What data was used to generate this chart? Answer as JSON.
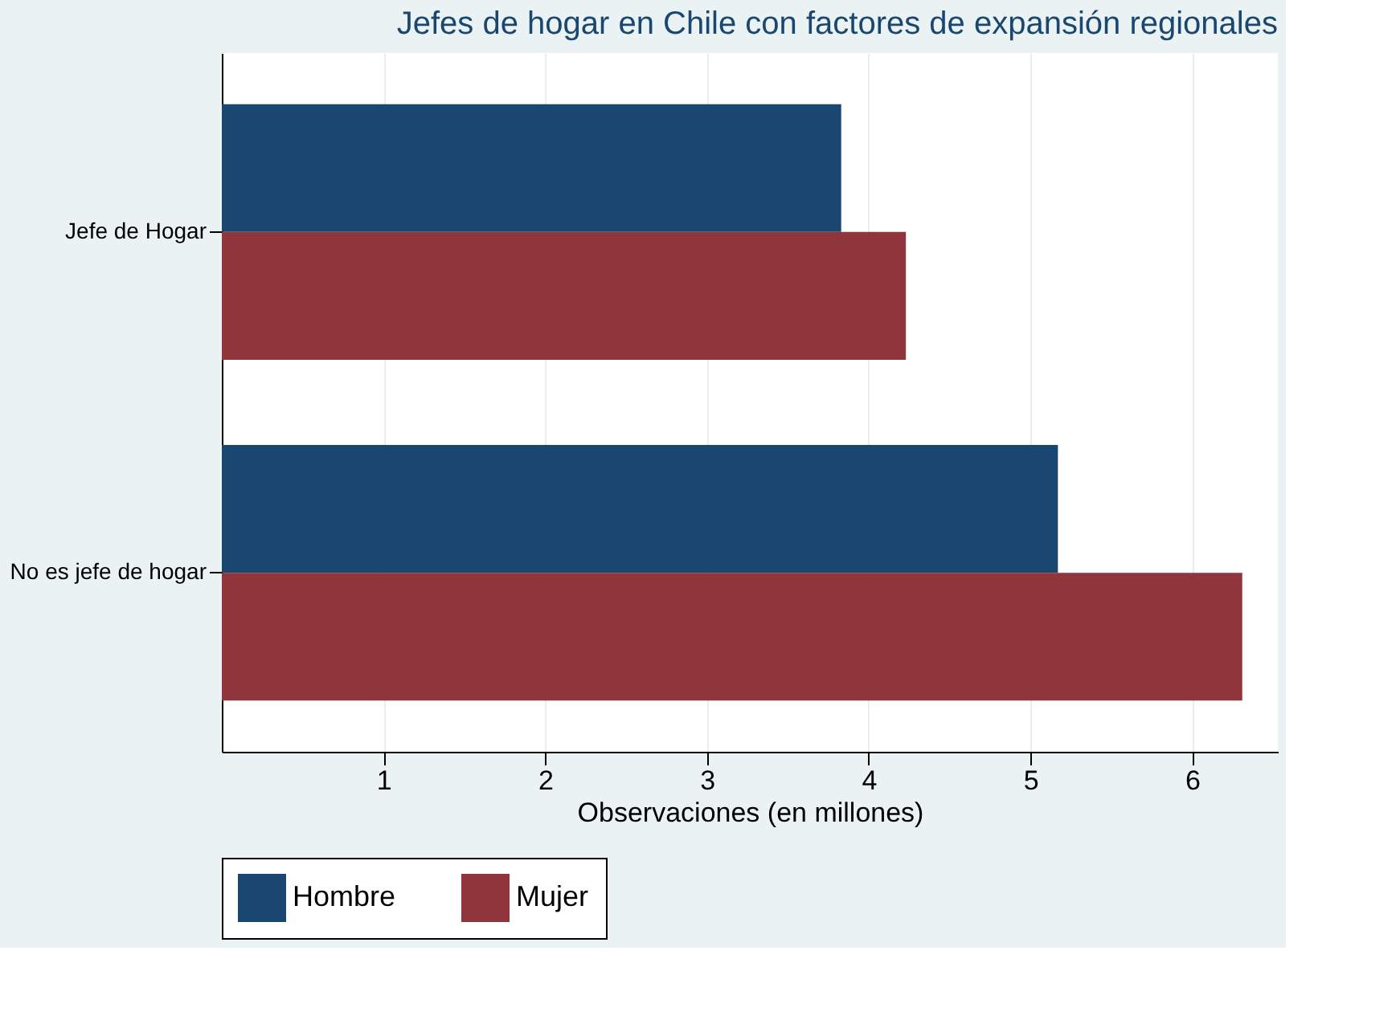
{
  "chart_data": {
    "type": "bar",
    "orientation": "horizontal",
    "title": "Jefes de hogar en Chile con factores de expansión regionales",
    "xlabel": "Observaciones (en millones)",
    "categories": [
      "Jefe de Hogar",
      "No es jefe de hogar"
    ],
    "series": [
      {
        "name": "Hombre",
        "color": "#1a476f",
        "values": [
          3.83,
          5.17
        ]
      },
      {
        "name": "Mujer",
        "color": "#90353b",
        "values": [
          4.23,
          6.31
        ]
      }
    ],
    "xlim": [
      0,
      6.53
    ],
    "xticks": [
      1,
      2,
      3,
      4,
      5,
      6
    ],
    "grid": "x",
    "legend": "bottom"
  }
}
